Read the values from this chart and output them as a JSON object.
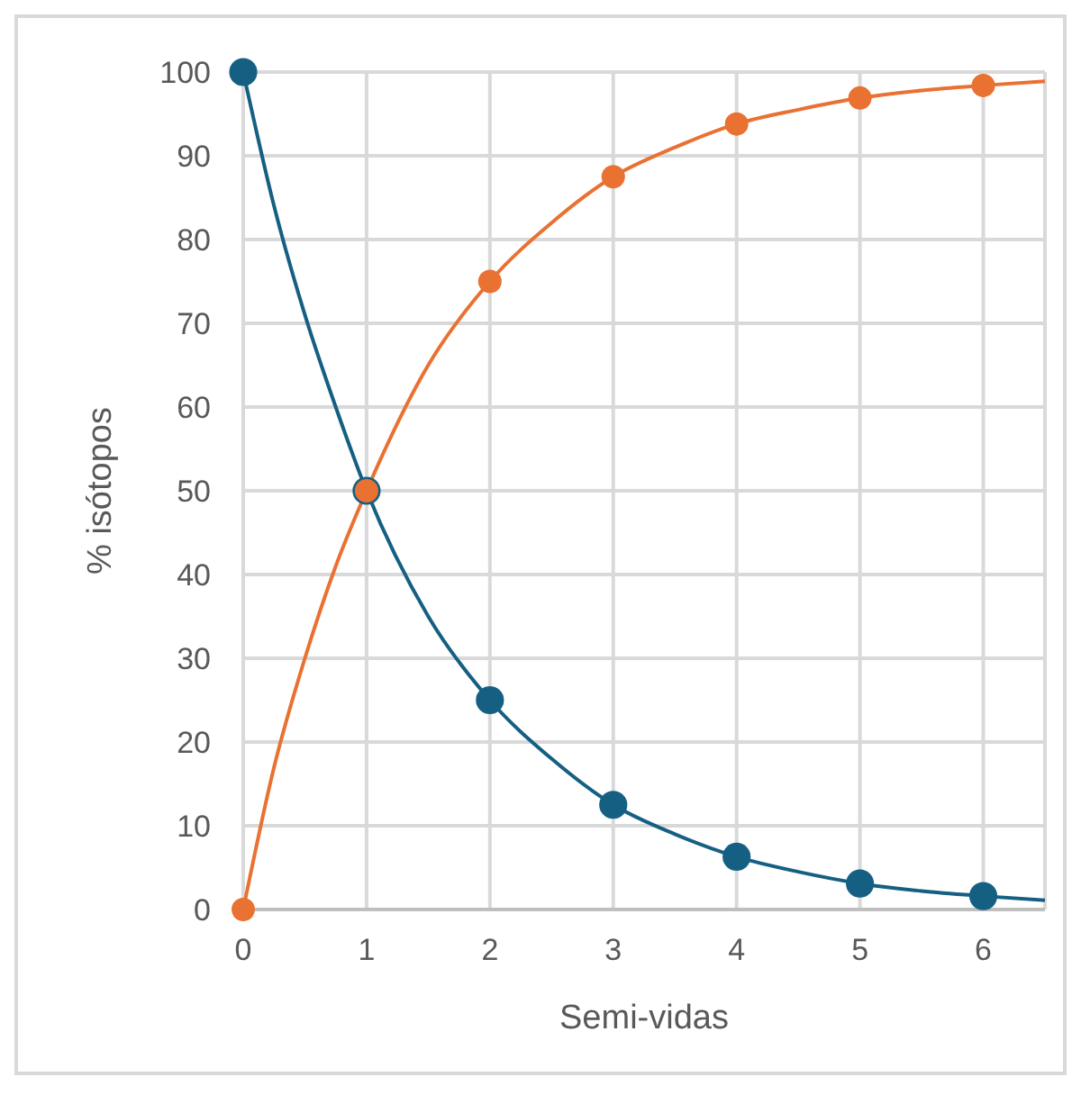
{
  "chart_data": {
    "type": "line",
    "xlabel": "Semi-vidas",
    "ylabel": "% isótopos",
    "xlim": [
      0,
      6.5
    ],
    "xticks": [
      0,
      1,
      2,
      3,
      4,
      5,
      6
    ],
    "ylim": [
      0,
      100
    ],
    "yticks": [
      0,
      10,
      20,
      30,
      40,
      50,
      60,
      70,
      80,
      90,
      100
    ],
    "grid": true,
    "line_style": "solid",
    "series": [
      {
        "marker": "none",
        "color": "#156082",
        "x": [
          0,
          0.25,
          0.5,
          0.75,
          1,
          1.5,
          2,
          2.5,
          3,
          3.5,
          4,
          4.5,
          5,
          5.5,
          6,
          6.5
        ],
        "values": [
          100,
          84,
          71,
          60,
          50,
          35,
          25,
          18,
          12.5,
          9,
          6.3,
          4.5,
          3.1,
          2.2,
          1.6,
          1.1
        ]
      },
      {
        "marker": "none",
        "color": "#e97132",
        "x": [
          0,
          0.25,
          0.5,
          0.75,
          1,
          1.5,
          2,
          2.5,
          3,
          3.5,
          4,
          4.5,
          5,
          5.5,
          6,
          6.5
        ],
        "values": [
          0,
          17,
          30,
          41,
          50,
          65,
          75,
          82,
          87.5,
          91,
          93.8,
          95.5,
          96.9,
          97.8,
          98.4,
          98.9
        ]
      },
      {
        "type": "scatter",
        "marker": "circle",
        "color": "#156082",
        "x": [
          0,
          1,
          2,
          3,
          4,
          5,
          6
        ],
        "values": [
          100,
          50,
          25,
          12.5,
          6.3,
          3.1,
          1.6
        ]
      },
      {
        "type": "scatter",
        "marker": "circle",
        "color": "#e97132",
        "x": [
          0,
          1,
          2,
          3,
          4,
          5,
          6
        ],
        "values": [
          0,
          50,
          75,
          87.5,
          93.8,
          96.9,
          98.4
        ]
      }
    ]
  }
}
